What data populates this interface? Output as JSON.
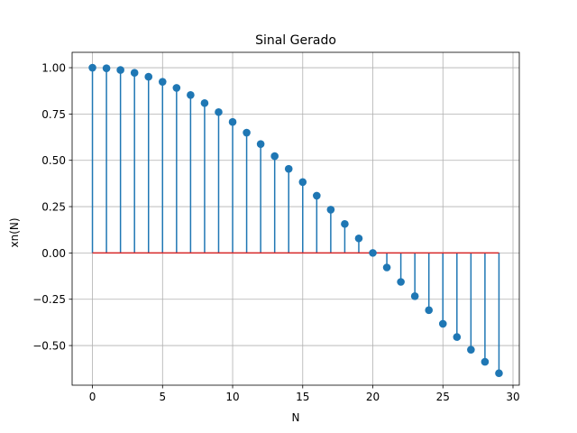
{
  "chart_data": {
    "type": "stem",
    "title": "Sinal Gerado",
    "xlabel": "N",
    "ylabel": "xn(N)",
    "xlim": [
      -1.45,
      30.45
    ],
    "ylim": [
      -0.714,
      1.083
    ],
    "xticks": [
      0,
      5,
      10,
      15,
      20,
      25,
      30
    ],
    "yticks": [
      -0.5,
      -0.25,
      0.0,
      0.25,
      0.5,
      0.75,
      1.0
    ],
    "ytick_labels": [
      "−0.50",
      "−0.25",
      "0.00",
      "0.25",
      "0.50",
      "0.75",
      "1.00"
    ],
    "grid": true,
    "baseline": 0,
    "colors": {
      "stem": "#1f77b4",
      "marker": "#1f77b4",
      "baseline": "#d62728",
      "grid": "#b0b0b0"
    },
    "x": [
      0,
      1,
      2,
      3,
      4,
      5,
      6,
      7,
      8,
      9,
      10,
      11,
      12,
      13,
      14,
      15,
      16,
      17,
      18,
      19,
      20,
      21,
      22,
      23,
      24,
      25,
      26,
      27,
      28,
      29
    ],
    "y": [
      1.0,
      0.9969,
      0.9877,
      0.9724,
      0.9511,
      0.9239,
      0.891,
      0.8526,
      0.809,
      0.7604,
      0.7071,
      0.6494,
      0.5878,
      0.5225,
      0.454,
      0.3827,
      0.309,
      0.2334,
      0.1564,
      0.0785,
      0.0,
      -0.0785,
      -0.1564,
      -0.2334,
      -0.309,
      -0.3827,
      -0.454,
      -0.5225,
      -0.5878,
      -0.6494
    ]
  }
}
